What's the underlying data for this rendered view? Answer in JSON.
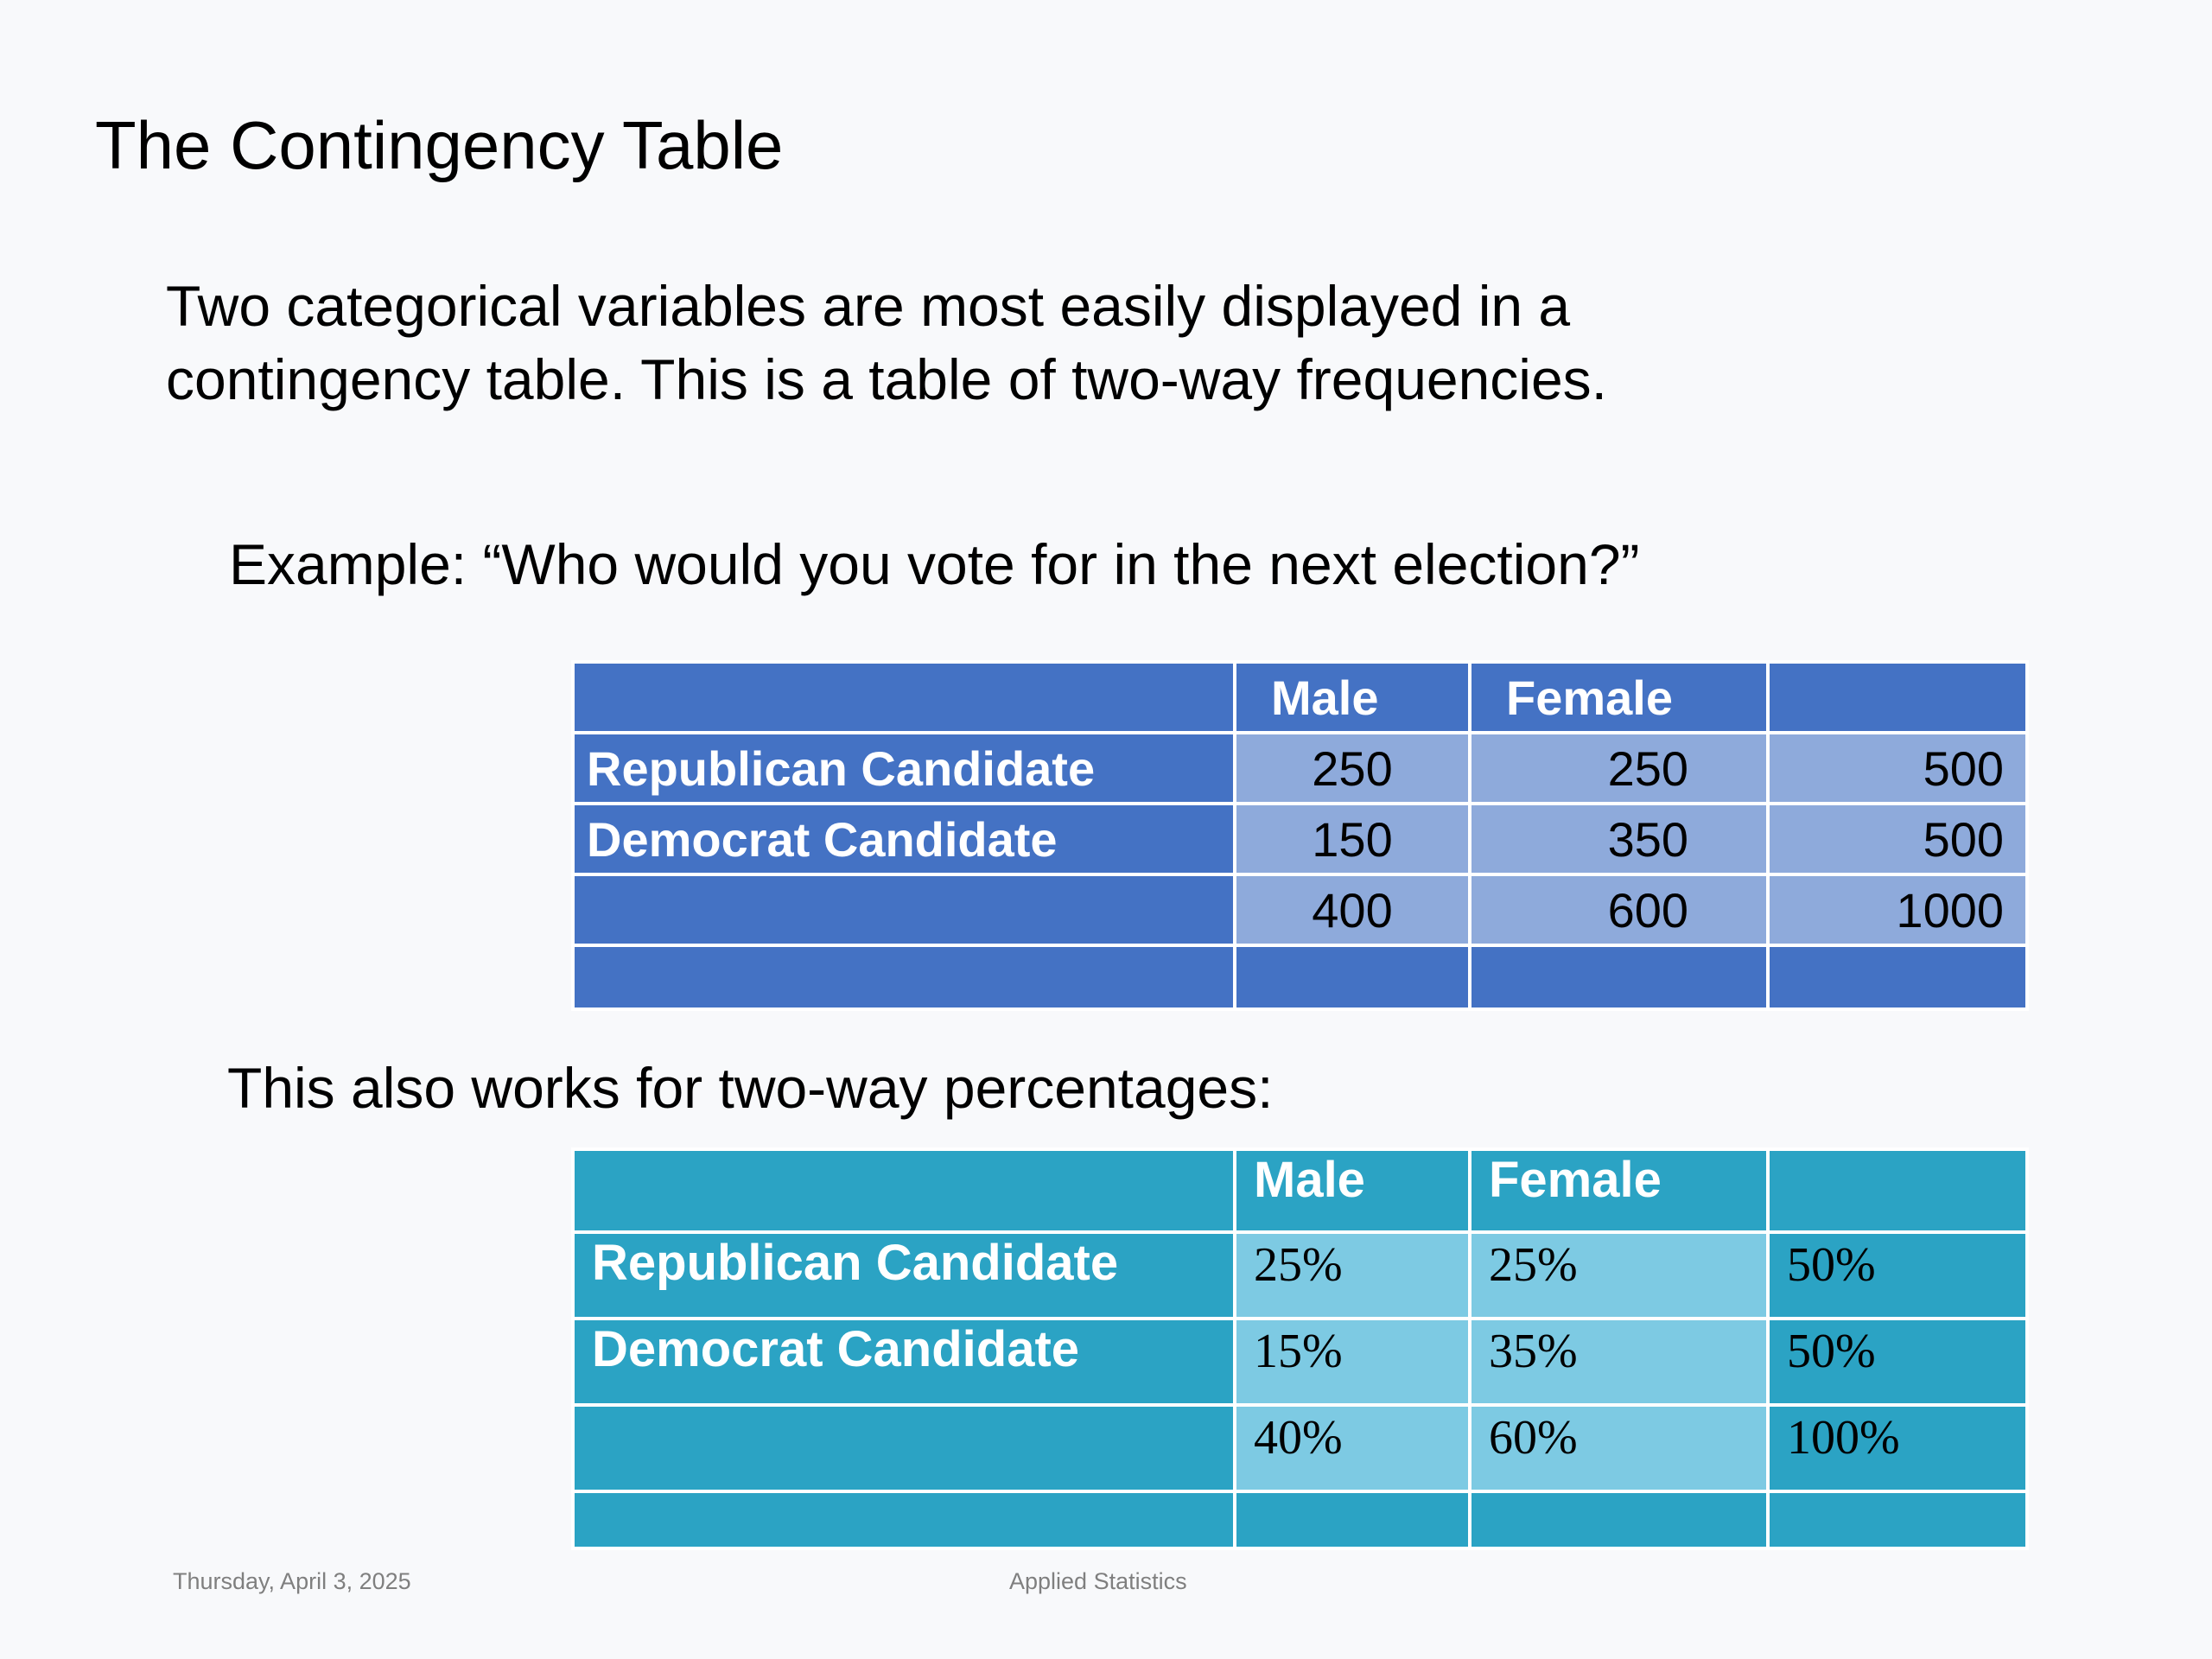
{
  "slide": {
    "title": "The Contingency Table",
    "intro_line1": "Two categorical variables are most easily displayed in a",
    "intro_line2": "contingency table.  This is a table of two-way frequencies.",
    "example": "Example: “Who would you vote for in the next election?”",
    "percent_caption": "This also works for two-way percentages:"
  },
  "freq_table": {
    "columns": [
      "",
      "Male",
      "Female",
      ""
    ],
    "rows": [
      {
        "label": "Republican Candidate",
        "male": "250",
        "female": "250",
        "total": "500"
      },
      {
        "label": "Democrat Candidate",
        "male": "150",
        "female": "350",
        "total": "500"
      },
      {
        "label": "",
        "male": "400",
        "female": "600",
        "total": "1000"
      },
      {
        "label": "",
        "male": "",
        "female": "",
        "total": ""
      }
    ],
    "colors": {
      "header": "#4472c4",
      "cell": "#8eaadb"
    }
  },
  "pct_table": {
    "columns": [
      "",
      "Male",
      "Female",
      ""
    ],
    "rows": [
      {
        "label": "Republican Candidate",
        "male": "25%",
        "female": "25%",
        "total": "50%"
      },
      {
        "label": "Democrat Candidate",
        "male": "15%",
        "female": "35%",
        "total": "50%"
      },
      {
        "label": "",
        "male": "40%",
        "female": "60%",
        "total": "100%"
      },
      {
        "label": "",
        "male": "",
        "female": "",
        "total": ""
      }
    ],
    "colors": {
      "header": "#2ba3c4",
      "cell": "#7dcae3"
    }
  },
  "footer": {
    "date": "Thursday, April 3, 2025",
    "course": "Applied Statistics"
  }
}
